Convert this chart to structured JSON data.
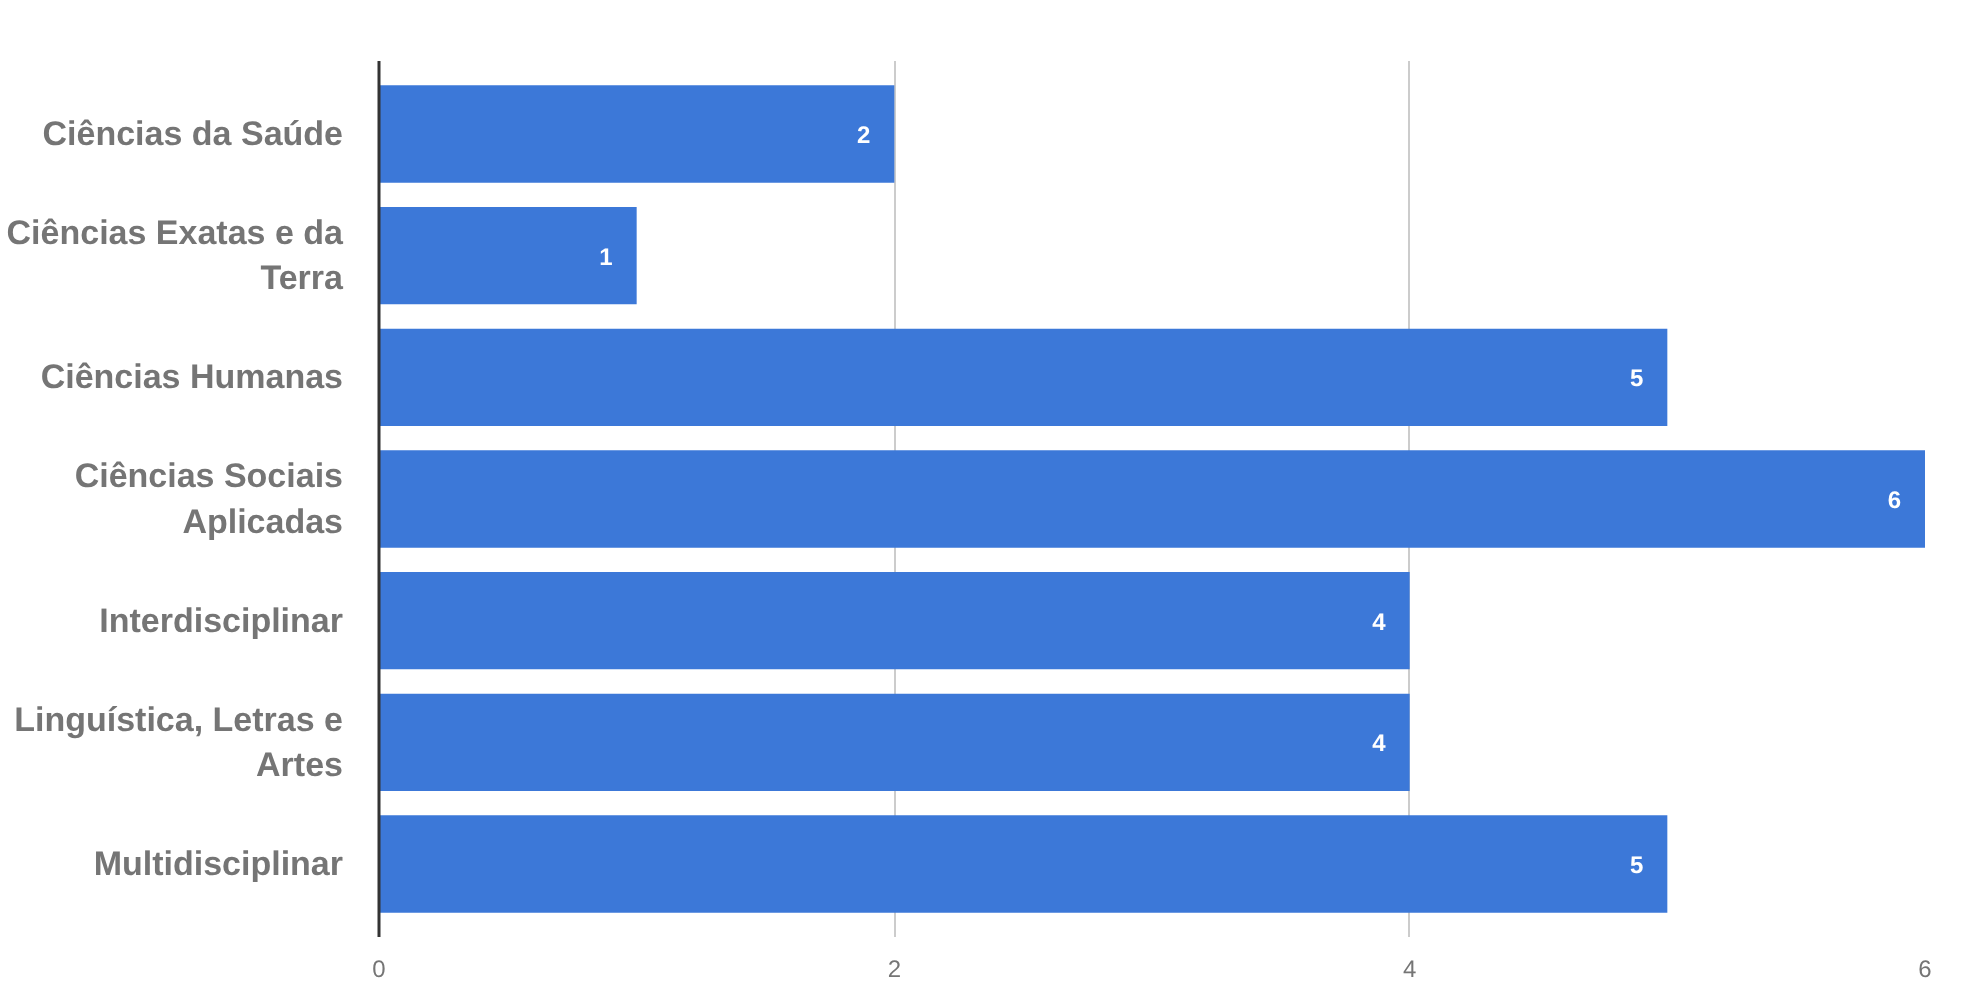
{
  "chart_data": {
    "type": "bar",
    "orientation": "horizontal",
    "categories": [
      "Ciências da Saúde",
      "Ciências Exatas e da Terra",
      "Ciências Humanas",
      "Ciências Sociais Aplicadas",
      "Interdisciplinar",
      "Linguística, Letras e Artes",
      "Multidisciplinar"
    ],
    "values": [
      2,
      1,
      5,
      6,
      4,
      4,
      5
    ],
    "color": "#3c78d8",
    "xlim": [
      0,
      6
    ],
    "xticks": [
      0,
      2,
      4,
      6
    ],
    "grid": "x",
    "data_labels": true
  }
}
